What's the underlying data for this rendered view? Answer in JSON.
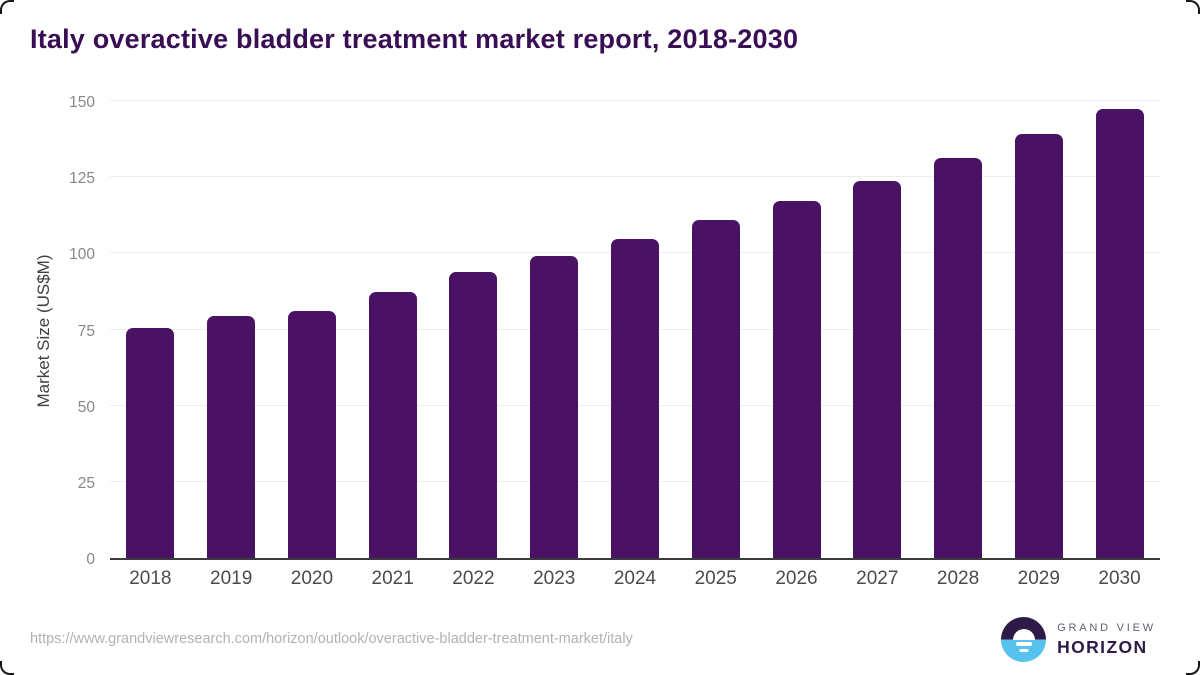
{
  "page": {
    "title": "Italy overactive bladder treatment market report, 2018-2030"
  },
  "chart_data": {
    "type": "bar",
    "title": "Italy overactive bladder treatment market report, 2018-2030",
    "categories": [
      "2018",
      "2019",
      "2020",
      "2021",
      "2022",
      "2023",
      "2024",
      "2025",
      "2026",
      "2027",
      "2028",
      "2029",
      "2030"
    ],
    "values": [
      75.5,
      79.5,
      81.0,
      87.2,
      93.8,
      99.0,
      104.8,
      111.1,
      117.2,
      123.9,
      131.3,
      139.2,
      147.5
    ],
    "xlabel": "",
    "ylabel": "Market Size (US$M)",
    "ylim": [
      0,
      150
    ],
    "yticks": [
      0,
      25,
      50,
      75,
      100,
      125,
      150
    ],
    "grid": true,
    "legend": false,
    "bar_color": "#4a1265"
  },
  "footer": {
    "source_url": "https://www.grandviewresearch.com/horizon/outlook/overactive-bladder-treatment-market/italy",
    "logo": {
      "top": "GRAND VIEW",
      "bottom": "HORIZON",
      "icon": "sunrise-horizon-icon"
    }
  },
  "colors": {
    "bar": "#4a1265",
    "title": "#3a0e55",
    "axis_line": "#3b3b3b",
    "gridline": "#ededed",
    "y_tick_text": "#878787",
    "x_tick_text": "#4b4b4b",
    "url_text": "#b2b2b2",
    "logo_dark_purple": "#2e1a47",
    "logo_sky_blue": "#58c2ee"
  }
}
